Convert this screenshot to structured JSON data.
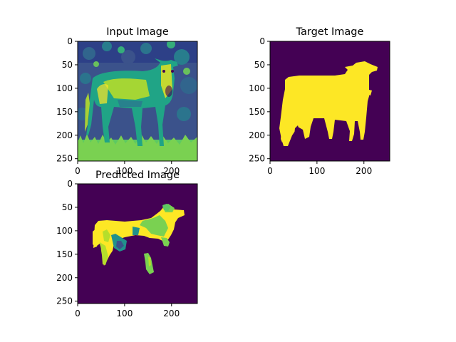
{
  "colors": {
    "background_purple": "#440154",
    "foreground_yellow": "#fde725",
    "green": "#7ad151",
    "teal": "#21918c",
    "blue": "#3b528b",
    "light_green": "#b5de2b"
  },
  "chart_data": [
    {
      "type": "image",
      "title": "Input Image",
      "xlim": [
        0,
        255
      ],
      "ylim": [
        255,
        0
      ],
      "xticks": [
        "0",
        "100",
        "200"
      ],
      "yticks": [
        "0",
        "50",
        "100",
        "150",
        "200",
        "250"
      ],
      "xtick_values": [
        0,
        100,
        200
      ],
      "ytick_values": [
        0,
        50,
        100,
        150,
        200,
        250
      ],
      "colormap": "viridis",
      "content": "grayscale photo of a cow standing in grass"
    },
    {
      "type": "image",
      "title": "Target Image",
      "xlim": [
        0,
        255
      ],
      "ylim": [
        255,
        0
      ],
      "xticks": [
        "0",
        "100",
        "200"
      ],
      "yticks": [
        "0",
        "50",
        "100",
        "150",
        "200",
        "250"
      ],
      "xtick_values": [
        0,
        100,
        200
      ],
      "ytick_values": [
        0,
        50,
        100,
        150,
        200,
        250
      ],
      "colormap": "viridis",
      "content": "binary segmentation mask of cow"
    },
    {
      "type": "image",
      "title": "Predicted Image",
      "xlim": [
        0,
        255
      ],
      "ylim": [
        255,
        0
      ],
      "xticks": [
        "0",
        "100",
        "200"
      ],
      "yticks": [
        "0",
        "50",
        "100",
        "150",
        "200",
        "250"
      ],
      "xtick_values": [
        0,
        100,
        200
      ],
      "ytick_values": [
        0,
        50,
        100,
        150,
        200,
        250
      ],
      "colormap": "viridis",
      "content": "predicted multi-class segmentation of cow"
    }
  ]
}
